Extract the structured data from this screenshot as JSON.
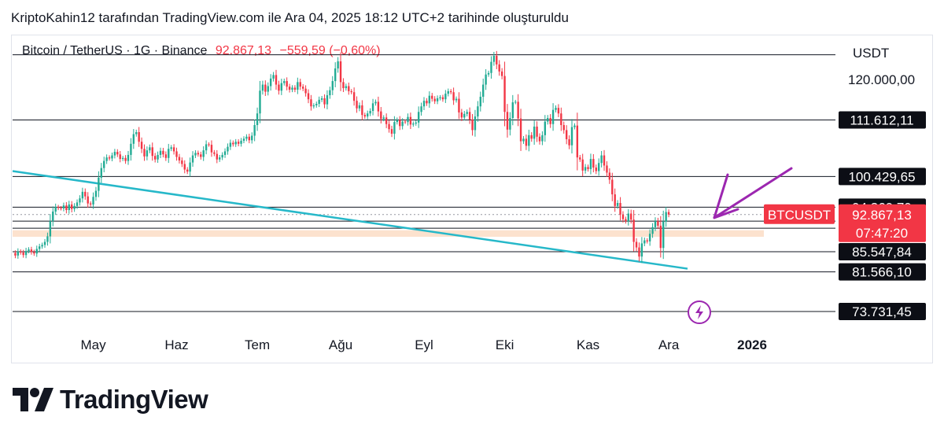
{
  "caption": "KriptoKahin12 tarafından TradingView.com ile Ara 04, 2025 18:12 UTC+2 tarihinde oluşturuldu",
  "legend": {
    "symbol": "Bitcoin / TetherUS · 1G · Binance",
    "last": "92.867,13",
    "change": "−559,59 (−0,60%)"
  },
  "currency": "USDT",
  "price_scale_label": "120.000,00",
  "brand": "TradingView",
  "colors": {
    "up": "#22ab94",
    "down": "#f23645",
    "trendline": "#26b8c9",
    "arrow": "#9c27b0",
    "zone": "#f9cba5",
    "level": "#131722"
  },
  "chart_data": {
    "type": "candlestick",
    "y_unit": "USDT",
    "x_labels": [
      "May",
      "Haz",
      "Tem",
      "Ağu",
      "Eyl",
      "Eki",
      "Kas",
      "Ara",
      "2026"
    ],
    "ylim": [
      70000,
      126000
    ],
    "horizontal_levels": [
      "111.612,11",
      "100.429,65",
      "94.369,79",
      "91.595,94",
      "90.194,07",
      "85.547,84",
      "81.566,10",
      "73.731,45"
    ],
    "top_line_value": 124500,
    "support_zone": [
      88500,
      89800
    ],
    "current_price_label": {
      "symbol": "BTCUSDT",
      "price": "92.867,13",
      "countdown": "07:47:20"
    },
    "trendline": {
      "from": [
        "2025-04-01",
        101500
      ],
      "to": [
        "2025-12-08",
        82200
      ]
    },
    "close_series": {
      "start": "2025-04-01",
      "interval_days": 1,
      "values": [
        85300,
        84800,
        85600,
        85400,
        84900,
        85700,
        86000,
        85500,
        85200,
        86100,
        86600,
        86900,
        87500,
        88600,
        91600,
        93500,
        94400,
        94200,
        94100,
        94700,
        93800,
        94900,
        94000,
        94600,
        95300,
        96100,
        97400,
        96500,
        95100,
        94900,
        96400,
        97600,
        100200,
        102100,
        103500,
        104200,
        104000,
        104600,
        105300,
        104800,
        103900,
        104100,
        103500,
        104700,
        106900,
        108800,
        109200,
        107300,
        105900,
        104400,
        105600,
        106200,
        104500,
        103800,
        104700,
        105500,
        104800,
        104100,
        105900,
        106200,
        105400,
        104300,
        103600,
        102900,
        101800,
        101400,
        103200,
        104600,
        105100,
        104800,
        104300,
        105600,
        106800,
        106700,
        105200,
        104900,
        103800,
        104200,
        104700,
        105400,
        106300,
        107100,
        106800,
        107300,
        106900,
        107500,
        107900,
        108300,
        107600,
        108500,
        110600,
        112900,
        117400,
        118600,
        117200,
        118300,
        119800,
        120500,
        118600,
        117400,
        118900,
        119300,
        118200,
        117600,
        118000,
        117600,
        119100,
        118200,
        117800,
        116900,
        115700,
        114300,
        114500,
        114800,
        115600,
        115900,
        114700,
        116500,
        117500,
        119300,
        121800,
        123200,
        119100,
        117900,
        118300,
        117300,
        117100,
        115400,
        113900,
        114500,
        112600,
        112300,
        112900,
        113400,
        114900,
        115200,
        113300,
        111800,
        112100,
        110800,
        109800,
        108900,
        111200,
        111600,
        110400,
        111300,
        111200,
        112200,
        110700,
        110900,
        111100,
        113200,
        114300,
        115400,
        114900,
        116400,
        115800,
        115300,
        115900,
        116100,
        115700,
        116800,
        117300,
        117100,
        115500,
        115800,
        113100,
        112100,
        112800,
        113200,
        111700,
        109600,
        112300,
        114300,
        116200,
        118600,
        120600,
        120900,
        123100,
        124300,
        122600,
        121200,
        120300,
        113200,
        109700,
        112000,
        115100,
        115200,
        111900,
        107400,
        107900,
        106500,
        108600,
        107900,
        110300,
        108300,
        107400,
        108600,
        111300,
        112000,
        110800,
        113600,
        114000,
        112900,
        110600,
        109600,
        107800,
        106600,
        110200,
        110500,
        104200,
        103800,
        101600,
        102300,
        101900,
        103900,
        102200,
        101500,
        103100,
        104600,
        102600,
        101200,
        99800,
        96900,
        94600,
        95200,
        92900,
        92000,
        91600,
        93100,
        91900,
        87500,
        86400,
        84600,
        87200,
        87800,
        87600,
        89100,
        90400,
        91600,
        90700,
        86300,
        91500,
        93400,
        92900
      ]
    },
    "annotations": [
      "BTCUSDT",
      "07:47:20"
    ]
  }
}
